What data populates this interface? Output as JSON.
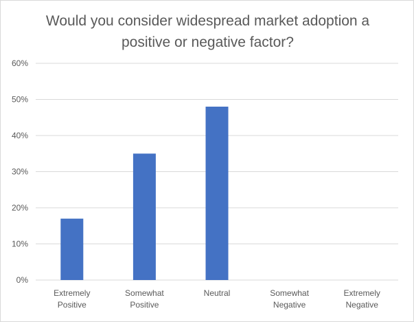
{
  "chart_data": {
    "type": "bar",
    "title": "Would you consider widespread market adoption a positive or negative factor?",
    "categories": [
      [
        "Extremely",
        "Positive"
      ],
      [
        "Somewhat",
        "Positive"
      ],
      [
        "Neutral"
      ],
      [
        "Somewhat",
        "Negative"
      ],
      [
        "Extremely",
        "Negative"
      ]
    ],
    "values": [
      17,
      35,
      48,
      0,
      0
    ],
    "ylim": [
      0,
      60
    ],
    "yticks": [
      "0%",
      "10%",
      "20%",
      "30%",
      "40%",
      "50%",
      "60%"
    ],
    "grid": true,
    "bar_color": "#4472c4",
    "grid_color": "#d9d9d9",
    "text_color": "#595959"
  }
}
